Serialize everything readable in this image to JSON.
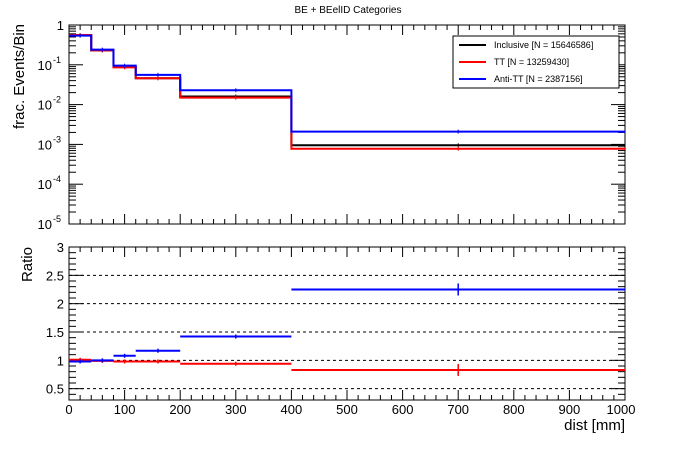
{
  "chart_data": [
    {
      "type": "line",
      "subtype": "step-histogram",
      "title": "BE + BEelID Categories",
      "ylabel": "frac. Events/Bin",
      "yscale": "log",
      "ylim": [
        1e-05,
        1
      ],
      "xlim": [
        0,
        1000
      ],
      "bin_edges": [
        0,
        40,
        80,
        120,
        200,
        400,
        1000
      ],
      "y_tick_labels": [
        "10^-5",
        "10^-4",
        "10^-3",
        "10^-2",
        "10^-1",
        "1"
      ],
      "legend_position": "top-right",
      "series": [
        {
          "name": "Inclusive [N = 15646586]",
          "color": "#000000",
          "values": [
            0.55,
            0.23,
            0.088,
            0.046,
            0.016,
            0.00095
          ]
        },
        {
          "name": "TT [N = 13259430]",
          "color": "#ff0000",
          "values": [
            0.56,
            0.23,
            0.086,
            0.046,
            0.015,
            0.00078
          ]
        },
        {
          "name": "Anti-TT [N = 2387156]",
          "color": "#0000ff",
          "values": [
            0.54,
            0.24,
            0.095,
            0.056,
            0.023,
            0.0021
          ]
        }
      ]
    },
    {
      "type": "line",
      "subtype": "step-ratio",
      "ylabel": "Ratio",
      "xlabel": "dist [mm]",
      "ylim": [
        0.3,
        3
      ],
      "xlim": [
        0,
        1000
      ],
      "bin_edges": [
        0,
        40,
        80,
        120,
        200,
        400,
        1000
      ],
      "x_tick_labels": [
        "0",
        "100",
        "200",
        "300",
        "400",
        "500",
        "600",
        "700",
        "800",
        "900",
        "1000"
      ],
      "y_tick_labels": [
        "0.5",
        "1",
        "1.5",
        "2",
        "2.5",
        "3"
      ],
      "dashed_reference_lines": [
        0.5,
        1,
        1.5,
        2,
        2.5
      ],
      "series": [
        {
          "name": "TT",
          "color": "#ff0000",
          "values": [
            1.01,
            0.99,
            0.98,
            0.98,
            0.94,
            0.83
          ]
        },
        {
          "name": "Anti-TT",
          "color": "#0000ff",
          "values": [
            0.98,
            1.0,
            1.08,
            1.17,
            1.42,
            2.25
          ]
        }
      ]
    }
  ]
}
